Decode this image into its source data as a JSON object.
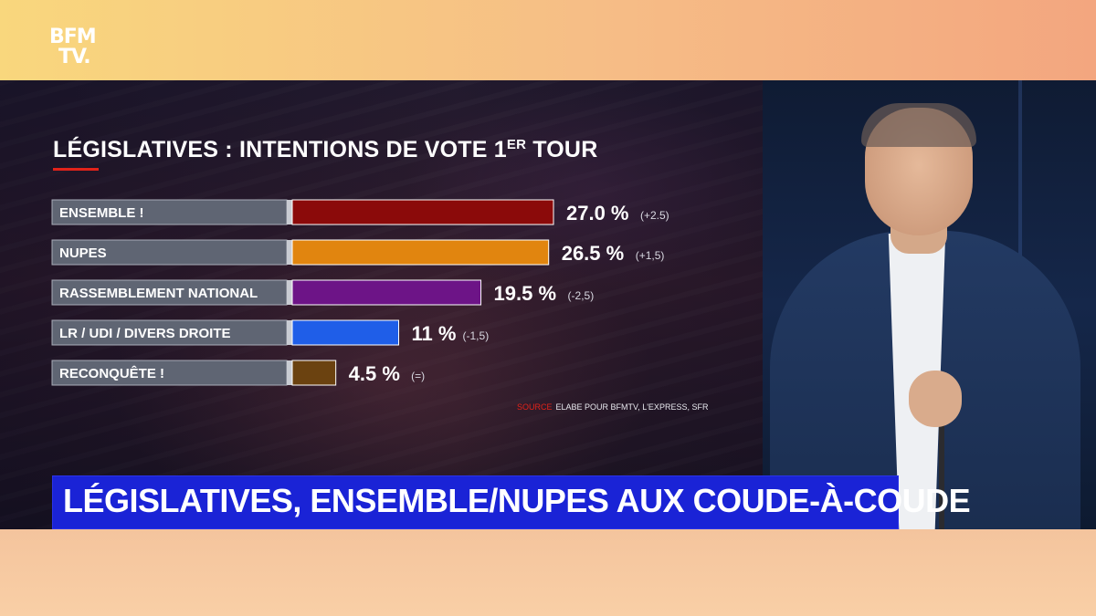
{
  "channel": {
    "logo_line1": "BFM",
    "logo_line2": "TV."
  },
  "headline": "LÉGISLATIVES, ENSEMBLE/NUPES AUX COUDE-À-COUDE",
  "colors": {
    "ensemble": "#8b0a0a",
    "nupes": "#e1850f",
    "rn": "#6d1487",
    "lr": "#1f5ee8",
    "reconquete": "#6b4210",
    "headline_bg": "#1a23d6",
    "accent": "#e2231a"
  },
  "source": {
    "label": "SOURCE",
    "text": "ELABE POUR BFMTV, L'EXPRESS, SFR"
  },
  "chart_data": {
    "type": "bar",
    "orientation": "horizontal",
    "title": "LÉGISLATIVES : INTENTIONS DE VOTE 1",
    "title_sup": "ER",
    "title_end": " TOUR",
    "categories": [
      "ENSEMBLE !",
      "NUPES",
      "RASSEMBLEMENT NATIONAL",
      "LR / UDI / DIVERS DROITE",
      "RECONQUÊTE !"
    ],
    "values": [
      27.0,
      26.5,
      19.5,
      11,
      4.5
    ],
    "value_labels": [
      "27.0 %",
      "26.5 %",
      "19.5 %",
      "11 %",
      "4.5 %"
    ],
    "changes": [
      "(+2.5)",
      "(+1,5)",
      "(-2,5)",
      "(-1,5)",
      "(=)"
    ],
    "bar_colors": [
      "#8b0a0a",
      "#e1850f",
      "#6d1487",
      "#1f5ee8",
      "#6b4210"
    ],
    "xlim": [
      0,
      27
    ],
    "grid": false,
    "legend": "none"
  }
}
